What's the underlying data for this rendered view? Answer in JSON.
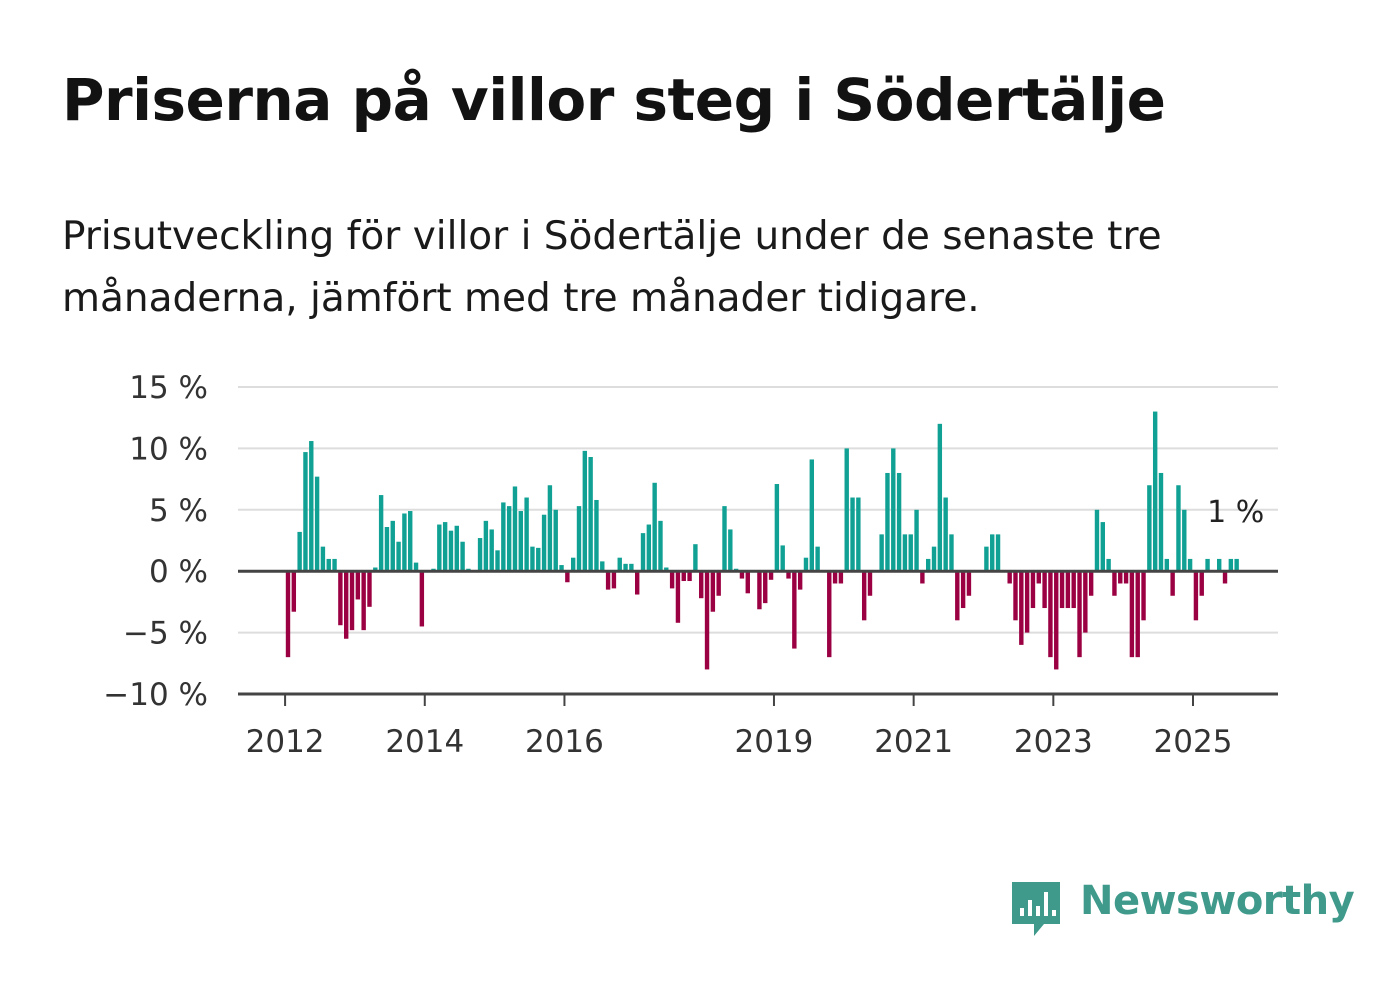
{
  "title": "Priserna på villor steg i Södertälje",
  "subtitle": "Prisutveckling för villor i Södertälje under de senaste tre månaderna, jämfört med tre månader tidigare.",
  "brand": {
    "name": "Newsworthy",
    "color": "#3f9a8c",
    "icon": "newsworthy-logo-icon"
  },
  "colors": {
    "positive": "#11a194",
    "negative": "#9b0042",
    "grid": "#dddddd",
    "axis": "#444444"
  },
  "chart_data": {
    "type": "bar",
    "title": "",
    "xlabel": "",
    "ylabel": "",
    "ylim": [
      -10,
      15
    ],
    "ytick_values": [
      -10,
      -5,
      0,
      5,
      10,
      15
    ],
    "ytick_labels": [
      "−10 %",
      "−5 %",
      "0 %",
      "5 %",
      "10 %",
      "15 %"
    ],
    "xticks": [
      {
        "label": "2012",
        "year": 2012
      },
      {
        "label": "2014",
        "year": 2014
      },
      {
        "label": "2016",
        "year": 2016
      },
      {
        "label": "2019",
        "year": 2019
      },
      {
        "label": "2021",
        "year": 2021
      },
      {
        "label": "2023",
        "year": 2023
      },
      {
        "label": "2025",
        "year": 2025
      }
    ],
    "start_month": "2012-01",
    "annotation": "1 %",
    "values": [
      -7,
      -3.3,
      3.2,
      9.7,
      10.6,
      7.7,
      2.0,
      1.0,
      1.0,
      -4.4,
      -5.5,
      -4.8,
      -2.3,
      -4.8,
      -2.9,
      0.3,
      6.2,
      3.6,
      4.1,
      2.4,
      4.7,
      4.9,
      0.7,
      -4.5,
      0,
      0.2,
      3.8,
      4.0,
      3.3,
      3.7,
      2.4,
      0.2,
      0,
      2.7,
      4.1,
      3.4,
      1.7,
      5.6,
      5.3,
      6.9,
      4.9,
      6.0,
      2.0,
      1.9,
      4.6,
      7.0,
      5.0,
      0.5,
      -0.9,
      1.1,
      5.3,
      9.8,
      9.3,
      5.8,
      0.8,
      -1.5,
      -1.4,
      1.1,
      0.6,
      0.6,
      -1.9,
      3.1,
      3.8,
      7.2,
      4.1,
      0.3,
      -1.4,
      -4.2,
      -0.8,
      -0.8,
      2.2,
      -2.2,
      -8.0,
      -3.3,
      -2.0,
      5.3,
      3.4,
      0.2,
      -0.6,
      -1.8,
      0,
      -3.1,
      -2.6,
      -0.7,
      7.1,
      2.1,
      -0.6,
      -6.3,
      -1.5,
      1.1,
      9.1,
      2.0,
      0,
      -7.0,
      -1.0,
      -1.0,
      10.0,
      6.0,
      6.0,
      -4.0,
      -2.0,
      0,
      3.0,
      8.0,
      10.0,
      8.0,
      3.0,
      3.0,
      5.0,
      -1.0,
      1.0,
      2.0,
      12.0,
      6.0,
      3.0,
      -4.0,
      -3.0,
      -2.0,
      0,
      0,
      2.0,
      3.0,
      3.0,
      0,
      -1.0,
      -4.0,
      -6.0,
      -5.0,
      -3.0,
      -1.0,
      -3.0,
      -7.0,
      -8.0,
      -3.0,
      -3.0,
      -3.0,
      -7.0,
      -5.0,
      -2.0,
      5.0,
      4.0,
      1.0,
      -2.0,
      -1.0,
      -1.0,
      -7.0,
      -7.0,
      -4.0,
      7.0,
      13.0,
      8.0,
      1.0,
      -2.0,
      7.0,
      5.0,
      1.0,
      -4.0,
      -2.0,
      1.0,
      0,
      1.0,
      -1.0,
      1.0,
      1.0
    ]
  }
}
